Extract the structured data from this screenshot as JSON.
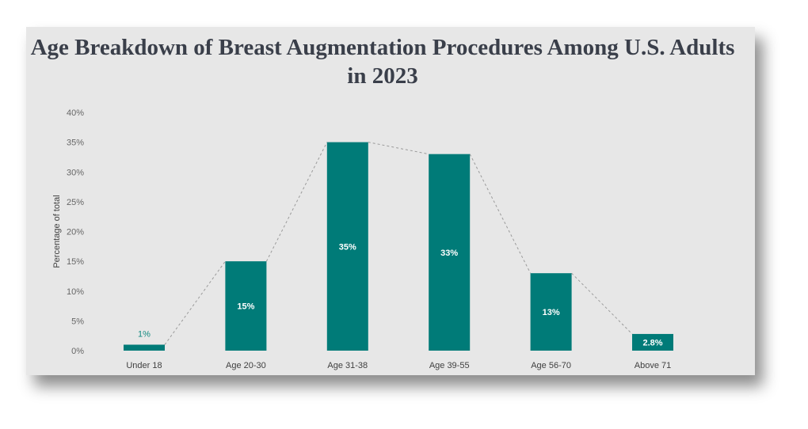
{
  "chart_data": {
    "type": "bar",
    "title": "Age Breakdown of Breast Augmentation Procedures Among U.S. Adults in 2023",
    "ylabel": "Percentage of total",
    "xlabel": "",
    "ylim": [
      0,
      40
    ],
    "y_ticks": [
      "0%",
      "5%",
      "10%",
      "15%",
      "20%",
      "25%",
      "30%",
      "35%",
      "40%"
    ],
    "categories": [
      "Under 18",
      "Age 20-30",
      "Age 31-38",
      "Age 39-55",
      "Age 56-70",
      "Above 71"
    ],
    "values": [
      1,
      15,
      35,
      33,
      13,
      2.8
    ],
    "data_labels": [
      "1%",
      "15%",
      "35%",
      "33%",
      "13%",
      "2.8%"
    ],
    "connector_line": "dashed",
    "grid": false,
    "legend": "none",
    "colors": {
      "bar": "#007b78",
      "panel": "#e7e7e7",
      "connector": "#9a9a9a"
    }
  }
}
